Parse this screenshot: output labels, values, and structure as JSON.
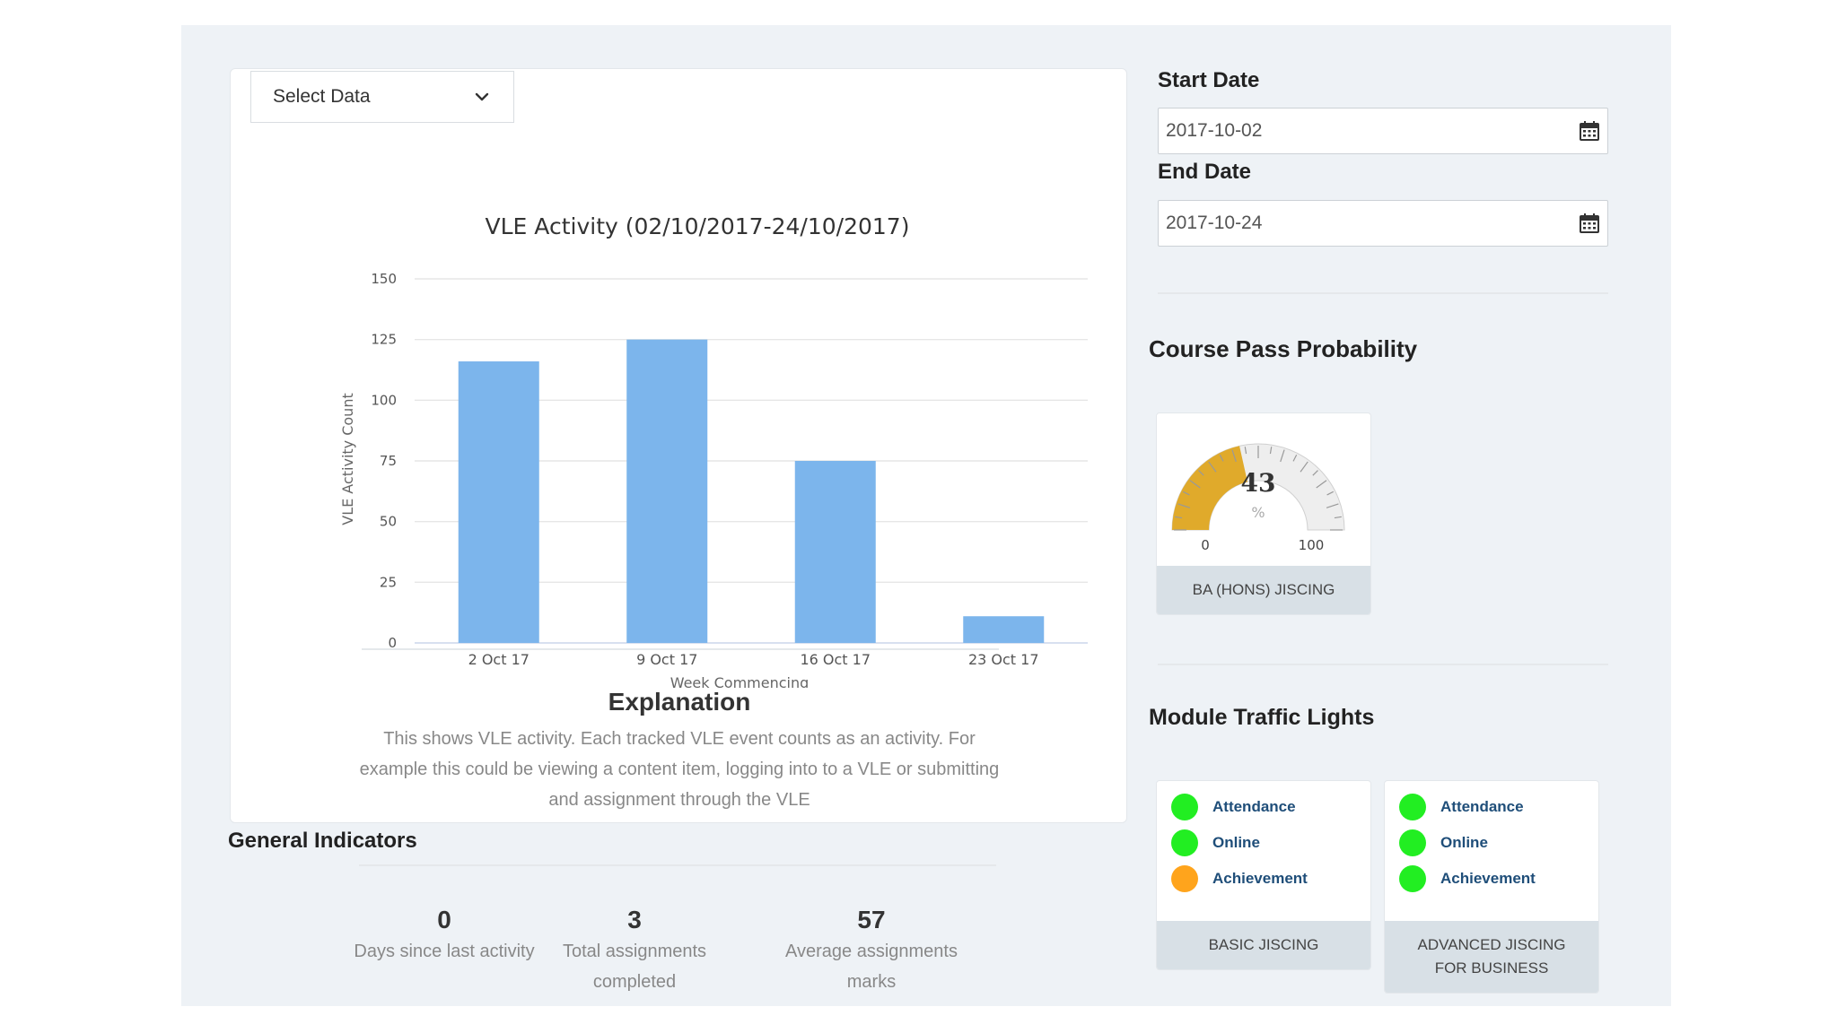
{
  "select": {
    "label": "Select Data"
  },
  "chart_data": {
    "type": "bar",
    "title": "VLE Activity (02/10/2017-24/10/2017)",
    "xlabel": "Week Commencing",
    "ylabel": "VLE Activity Count",
    "categories": [
      "2 Oct 17",
      "9 Oct 17",
      "16 Oct 17",
      "23 Oct 17"
    ],
    "values": [
      116,
      125,
      75,
      11
    ],
    "ylim": [
      0,
      150
    ],
    "yticks": [
      0,
      25,
      50,
      75,
      100,
      125,
      150
    ],
    "bar_color": "#7cb5ec",
    "grid": true
  },
  "explanation": {
    "title": "Explanation",
    "text": "This shows VLE activity. Each tracked VLE event counts as an activity. For example this could be viewing a content item, logging into to a VLE or submitting and assignment through the VLE"
  },
  "general_indicators": {
    "title": "General Indicators",
    "items": [
      {
        "value": "0",
        "label": "Days since last activity"
      },
      {
        "value": "3",
        "label": "Total assignments completed"
      },
      {
        "value": "57",
        "label": "Average assignments marks"
      }
    ]
  },
  "start_date": {
    "label": "Start Date",
    "value": "2017-10-02"
  },
  "end_date": {
    "label": "End Date",
    "value": "2017-10-24"
  },
  "course_pass": {
    "title": "Course Pass Probability",
    "value": 43,
    "value_label": "43",
    "unit": "%",
    "min_label": "0",
    "max_label": "100",
    "course": "BA (HONS) JISCING",
    "color": "#e0aa2b"
  },
  "traffic_lights": {
    "title": "Module Traffic Lights",
    "modules": [
      {
        "name": "BASIC JISCING",
        "lights": [
          {
            "label": "Attendance",
            "status": "green"
          },
          {
            "label": "Online",
            "status": "green"
          },
          {
            "label": "Achievement",
            "status": "orange"
          }
        ]
      },
      {
        "name": "ADVANCED JISCING FOR BUSINESS",
        "lights": [
          {
            "label": "Attendance",
            "status": "green"
          },
          {
            "label": "Online",
            "status": "green"
          },
          {
            "label": "Achievement",
            "status": "green"
          }
        ]
      }
    ],
    "colors": {
      "green": "#22ee22",
      "orange": "#ffa41c"
    }
  }
}
